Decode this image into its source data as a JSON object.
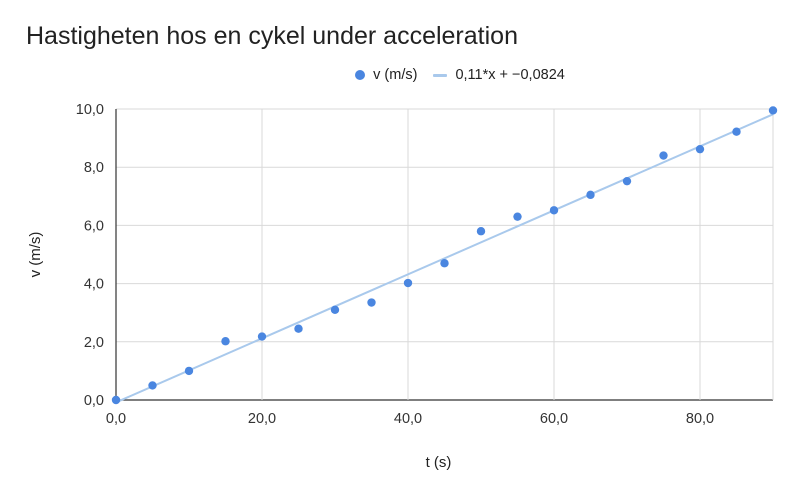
{
  "chart_data": {
    "type": "scatter",
    "title": "Hastigheten hos en cykel under acceleration",
    "xlabel": "t (s)",
    "ylabel": "v (m/s)",
    "xlim": [
      0,
      90
    ],
    "ylim": [
      0,
      10
    ],
    "x_ticks": [
      0,
      20,
      40,
      60,
      80
    ],
    "y_ticks": [
      0,
      2,
      4,
      6,
      8,
      10
    ],
    "x_tick_labels": [
      "0,0",
      "20,0",
      "40,0",
      "60,0",
      "80,0"
    ],
    "y_tick_labels": [
      "0,0",
      "2,0",
      "4,0",
      "6,0",
      "8,0",
      "10,0"
    ],
    "grid": true,
    "legend_position": "top",
    "series": [
      {
        "name": "v (m/s)",
        "kind": "scatter",
        "color": "#4a86e0",
        "x": [
          0,
          5,
          10,
          15,
          20,
          25,
          30,
          35,
          40,
          45,
          50,
          55,
          60,
          65,
          70,
          75,
          80,
          85,
          90
        ],
        "y": [
          0,
          0.5,
          1.0,
          2.02,
          2.18,
          2.45,
          3.1,
          3.35,
          4.02,
          4.7,
          5.8,
          6.3,
          6.52,
          7.05,
          7.52,
          8.4,
          8.62,
          9.22,
          9.95
        ]
      },
      {
        "name": "0,11*x + −0,0824",
        "kind": "trendline",
        "color": "#a9c9ec",
        "slope": 0.11,
        "intercept": -0.0824
      }
    ]
  }
}
